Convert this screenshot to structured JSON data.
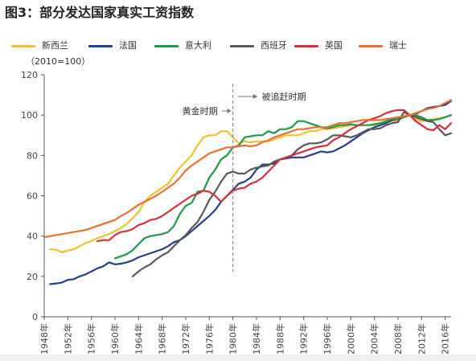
{
  "figure": {
    "title": "图3：部分发达国家真实工资指数"
  },
  "units_note": "（2010=100）",
  "chart_data": {
    "type": "line",
    "xlabel": "",
    "ylabel": "",
    "ylim": [
      0,
      120
    ],
    "xlim": [
      1948,
      2017
    ],
    "yticks": [
      0,
      20,
      40,
      60,
      80,
      100,
      120
    ],
    "xticks": [
      "1948年",
      "1952年",
      "1956年",
      "1960年",
      "1964年",
      "1968年",
      "1972年",
      "1976年",
      "1980年",
      "1984年",
      "1988年",
      "1992年",
      "1996年",
      "2000年",
      "2004年",
      "2008年",
      "2012年",
      "2016年"
    ],
    "grid": false,
    "legend": "top",
    "annotations": [
      {
        "text": "黄金时期",
        "arrow": "right"
      },
      {
        "text": "被追赶时期",
        "arrow": "right"
      }
    ],
    "divider_x": 1980,
    "series": [
      {
        "name": "新西兰",
        "color": "#F2C12E",
        "x": [
          1949,
          1950,
          1951,
          1952,
          1953,
          1954,
          1955,
          1956,
          1957,
          1958,
          1959,
          1960,
          1961,
          1962,
          1963,
          1964,
          1965,
          1966,
          1967,
          1968,
          1969,
          1970,
          1971,
          1972,
          1973,
          1974,
          1975,
          1976,
          1977,
          1978,
          1979,
          1980,
          1981,
          1982,
          1983,
          1984,
          1985,
          1986,
          1987,
          1988,
          1989,
          1990,
          1991,
          1992,
          1993,
          1994,
          1995,
          1996,
          1997,
          1998,
          1999,
          2000,
          2001,
          2002,
          2003,
          2004,
          2005,
          2006,
          2007,
          2008,
          2009,
          2010,
          2011,
          2012,
          2013,
          2014,
          2015,
          2016,
          2017
        ],
        "values": [
          33.5,
          33.2,
          32,
          32.8,
          33.5,
          35,
          36.5,
          37.5,
          39,
          40,
          41,
          42.5,
          44,
          46,
          49,
          52,
          57,
          60,
          62,
          64,
          66,
          70,
          74,
          77,
          80,
          85,
          89,
          90,
          90,
          92,
          92,
          89,
          86,
          87,
          86.5,
          87,
          87,
          87,
          88,
          89,
          90,
          90,
          90,
          91,
          92,
          92,
          93,
          93,
          93.5,
          94,
          94.5,
          95,
          95,
          95,
          95,
          95,
          96,
          96.5,
          97,
          97.5,
          99,
          100,
          98,
          97,
          97.5,
          98,
          98.5,
          99,
          100
        ]
      },
      {
        "name": "法国",
        "color": "#23408E",
        "x": [
          1949,
          1950,
          1951,
          1952,
          1953,
          1954,
          1955,
          1956,
          1957,
          1958,
          1959,
          1960,
          1961,
          1962,
          1963,
          1964,
          1965,
          1966,
          1967,
          1968,
          1969,
          1970,
          1971,
          1972,
          1973,
          1974,
          1975,
          1976,
          1977,
          1978,
          1979,
          1980,
          1981,
          1982,
          1983,
          1984,
          1985,
          1986,
          1987,
          1988,
          1989,
          1990,
          1991,
          1992,
          1993,
          1994,
          1995,
          1996,
          1997,
          1998,
          1999,
          2000,
          2001,
          2002,
          2003,
          2004,
          2005,
          2006,
          2007,
          2008,
          2009,
          2010,
          2011,
          2012,
          2013,
          2014,
          2015,
          2016,
          2017
        ],
        "values": [
          16.2,
          16.5,
          17,
          18.3,
          18.6,
          20,
          21,
          22.5,
          24,
          25,
          27,
          26,
          26.3,
          27,
          28,
          29.5,
          30.5,
          31.5,
          32.5,
          33.5,
          35,
          37,
          38,
          40,
          42.5,
          45,
          47.5,
          50,
          53,
          57,
          60,
          63,
          66,
          67,
          69,
          73,
          75.5,
          75.5,
          76,
          78,
          78.5,
          79,
          79,
          79,
          80,
          81,
          82,
          81.5,
          82,
          83.5,
          85,
          87,
          89,
          91,
          92.5,
          94,
          95,
          96,
          97.5,
          98,
          99,
          100,
          100.5,
          102,
          103.5,
          104,
          104.5,
          105,
          107
        ]
      },
      {
        "name": "意大利",
        "color": "#1E9A4B",
        "x": [
          1960,
          1961,
          1962,
          1963,
          1964,
          1965,
          1966,
          1967,
          1968,
          1969,
          1970,
          1971,
          1972,
          1973,
          1974,
          1975,
          1976,
          1977,
          1978,
          1979,
          1980,
          1981,
          1982,
          1983,
          1984,
          1985,
          1986,
          1987,
          1988,
          1989,
          1990,
          1991,
          1992,
          1993,
          1994,
          1995,
          1996,
          1997,
          1998,
          1999,
          2000,
          2001,
          2002,
          2003,
          2004,
          2005,
          2006,
          2007,
          2008,
          2009,
          2010,
          2011,
          2012,
          2013,
          2014,
          2015,
          2016,
          2017
        ],
        "values": [
          29,
          30,
          31,
          33,
          36,
          39,
          40,
          40.5,
          41,
          42,
          45,
          51,
          55,
          56.5,
          62,
          62.5,
          69,
          73,
          78,
          80,
          84,
          85,
          89,
          89.5,
          90,
          90,
          92,
          91,
          93,
          93,
          94,
          97,
          97,
          96,
          95,
          94,
          93.5,
          94,
          95,
          95,
          95.5,
          95,
          95,
          95,
          95.5,
          96,
          97,
          98,
          98,
          99,
          100,
          100,
          99,
          97.5,
          97.5,
          98,
          99,
          100
        ]
      },
      {
        "name": "西班牙",
        "color": "#595959",
        "x": [
          1963,
          1964,
          1965,
          1966,
          1967,
          1968,
          1969,
          1970,
          1971,
          1972,
          1973,
          1974,
          1975,
          1976,
          1977,
          1978,
          1979,
          1980,
          1981,
          1982,
          1983,
          1984,
          1985,
          1986,
          1987,
          1988,
          1989,
          1990,
          1991,
          1992,
          1993,
          1994,
          1995,
          1996,
          1997,
          1998,
          1999,
          2000,
          2001,
          2002,
          2003,
          2004,
          2005,
          2006,
          2007,
          2008,
          2009,
          2010,
          2011,
          2012,
          2013,
          2014,
          2015,
          2016,
          2017
        ],
        "values": [
          20,
          22.5,
          24.5,
          26,
          28.5,
          30.5,
          32,
          35,
          38,
          40.5,
          44,
          47,
          52,
          58,
          62,
          67,
          71,
          72,
          71,
          71,
          73,
          74,
          74.5,
          75,
          77,
          78,
          79,
          80,
          83,
          85,
          86,
          86,
          86.5,
          88,
          90,
          90,
          89.5,
          89,
          90,
          91.5,
          93,
          93,
          93.5,
          95,
          96,
          96.5,
          101.5,
          100,
          99,
          98,
          97,
          96.5,
          93,
          90,
          91
        ]
      },
      {
        "name": "英国",
        "color": "#D62F3A",
        "x": [
          1957,
          1958,
          1959,
          1960,
          1961,
          1962,
          1963,
          1964,
          1965,
          1966,
          1967,
          1968,
          1969,
          1970,
          1971,
          1972,
          1973,
          1974,
          1975,
          1976,
          1977,
          1978,
          1979,
          1980,
          1981,
          1982,
          1983,
          1984,
          1985,
          1986,
          1987,
          1988,
          1989,
          1990,
          1991,
          1992,
          1993,
          1994,
          1995,
          1996,
          1997,
          1998,
          1999,
          2000,
          2001,
          2002,
          2003,
          2004,
          2005,
          2006,
          2007,
          2008,
          2009,
          2010,
          2011,
          2012,
          2013,
          2014,
          2015,
          2016,
          2017
        ],
        "values": [
          37.5,
          38,
          38,
          40.5,
          42,
          42.5,
          43.5,
          45.5,
          46.5,
          48,
          48.5,
          50,
          52,
          54,
          56,
          58,
          60,
          61,
          62.5,
          62,
          60,
          57,
          60,
          62.5,
          63.5,
          64,
          66,
          67,
          69,
          72,
          75,
          78,
          79,
          80,
          81,
          82,
          83,
          84,
          84.5,
          85,
          87.5,
          89,
          91,
          93,
          94.5,
          96,
          97.5,
          98.5,
          99.5,
          101,
          102,
          102.5,
          102.5,
          100,
          97,
          95,
          93,
          92.5,
          95,
          93,
          96
        ]
      },
      {
        "name": "瑞士",
        "color": "#EB6F2D",
        "x": [
          1948,
          1949,
          1950,
          1951,
          1952,
          1953,
          1954,
          1955,
          1956,
          1957,
          1958,
          1959,
          1960,
          1961,
          1962,
          1963,
          1964,
          1965,
          1966,
          1967,
          1968,
          1969,
          1970,
          1971,
          1972,
          1973,
          1974,
          1975,
          1976,
          1977,
          1978,
          1979,
          1980,
          1981,
          1982,
          1983,
          1984,
          1985,
          1986,
          1987,
          1988,
          1989,
          1990,
          1991,
          1992,
          1993,
          1994,
          1995,
          1996,
          1997,
          1998,
          1999,
          2000,
          2001,
          2002,
          2003,
          2004,
          2005,
          2006,
          2007,
          2008,
          2009,
          2010,
          2011,
          2012,
          2013,
          2014,
          2015,
          2016,
          2017
        ],
        "values": [
          39.5,
          40,
          40.5,
          41,
          41.5,
          42,
          42.5,
          43,
          44,
          45,
          46,
          47,
          48,
          50,
          51.5,
          53.5,
          55.5,
          57,
          58.5,
          60,
          62,
          64,
          66,
          69,
          72.5,
          75,
          77,
          79,
          81,
          82,
          83,
          84,
          84,
          84.5,
          85,
          84.5,
          85,
          86.5,
          87.5,
          89,
          90,
          91,
          92,
          93,
          93,
          93.5,
          94,
          94,
          94,
          95,
          96,
          96,
          96.5,
          97,
          97.5,
          97.5,
          97.5,
          97.5,
          98,
          98.5,
          99,
          99.5,
          100,
          101,
          102,
          103,
          103.5,
          104.5,
          106,
          107.5
        ]
      }
    ]
  }
}
